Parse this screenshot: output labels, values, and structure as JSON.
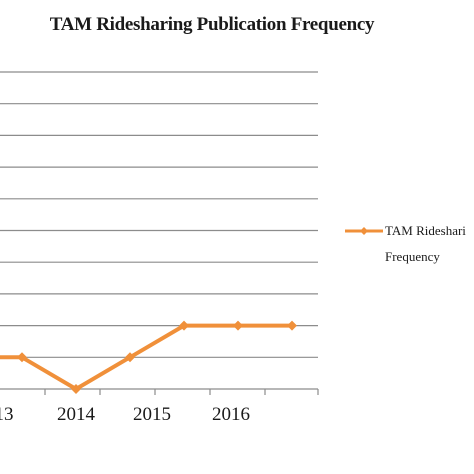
{
  "chart_data": {
    "type": "line",
    "title": "TAM Ridesharing Publication Frequency",
    "x_labels": [
      "13",
      "2014",
      "2015",
      "2016"
    ],
    "series": [
      {
        "name": "TAM Ridesharing Frequency",
        "name_visible_lines": [
          "TAM Rideshari",
          "Frequency"
        ],
        "color": "#F0903A",
        "values": [
          1,
          1,
          0,
          1,
          2,
          2,
          2
        ]
      }
    ],
    "ylim": [
      0,
      10
    ],
    "grid": true,
    "legend": "right"
  }
}
